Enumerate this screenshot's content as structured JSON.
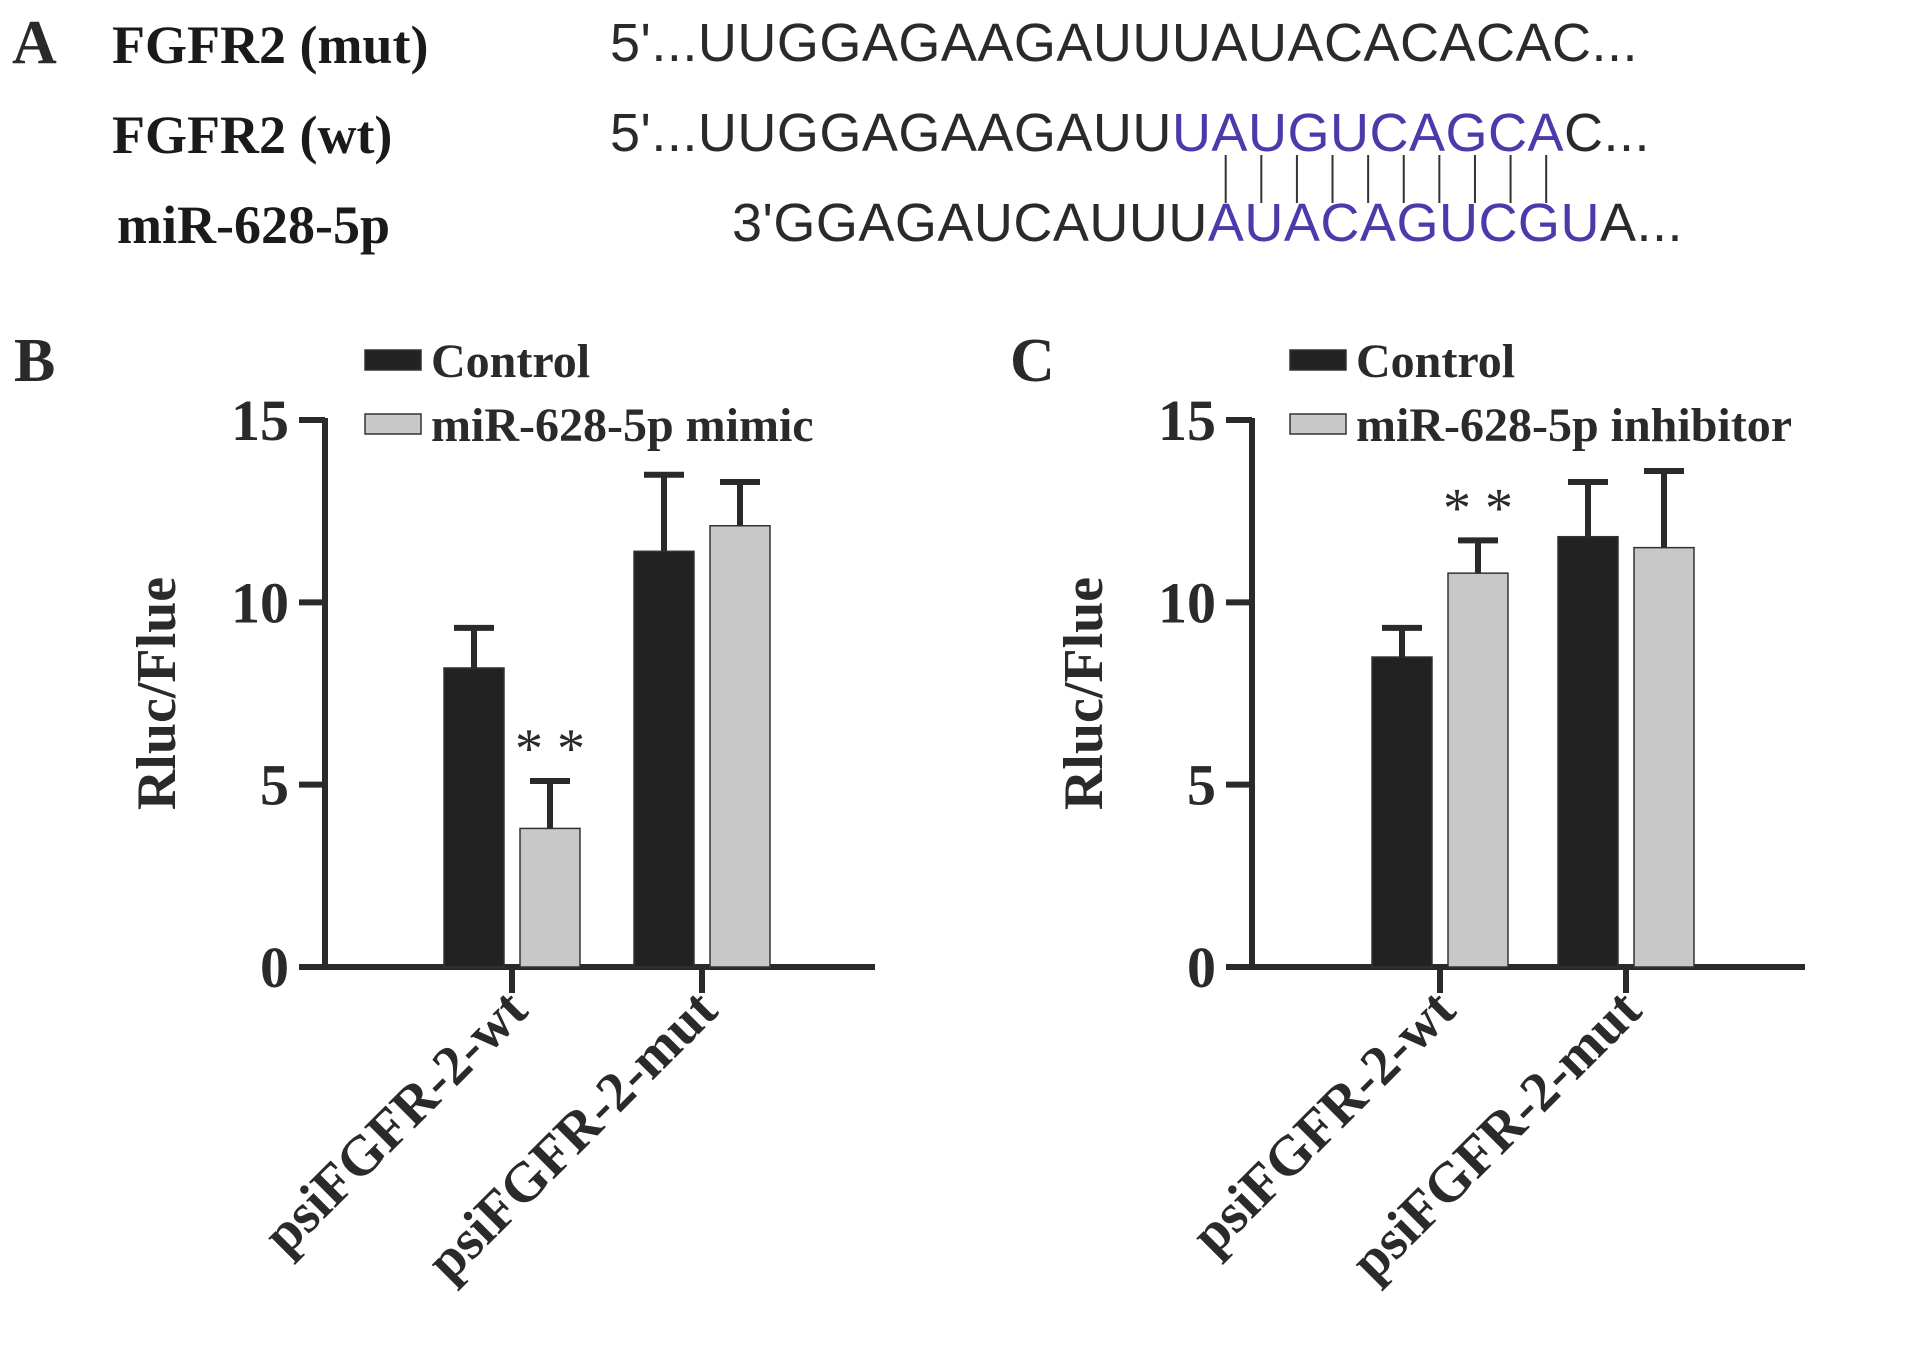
{
  "panel_a": {
    "letter": "A",
    "rows": [
      {
        "name": "FGFR2 (mut)",
        "prefix": "5'...",
        "plain": "UUGGAGAAGAUUUAUACACACAC",
        "highlight": "",
        "after": "",
        "suffix": "..."
      },
      {
        "name": "FGFR2 (wt)",
        "prefix": "5'...",
        "plain": "UUGGAGAAGAUU",
        "highlight": "UAUGUCAGCA",
        "after": "C",
        "suffix": "..."
      },
      {
        "name": "miR-628-5p",
        "prefix": "3'",
        "plain": "GGAGAUCAUUU",
        "highlight": "AUACAGUCGU",
        "after": "A",
        "suffix": "..."
      }
    ],
    "highlight_color": "#4a3aaa",
    "pairing_lines": 10
  },
  "chart_data": [
    {
      "panel": "B",
      "type": "bar",
      "ylabel": "Rluc/Flue",
      "ylim": [
        0,
        15
      ],
      "yticks": [
        0,
        5,
        10,
        15
      ],
      "categories": [
        "psiFGFR-2-wt",
        "psiFGFR-2-mut"
      ],
      "series": [
        {
          "name": "Control",
          "color": "#222222",
          "values": [
            8.2,
            11.4
          ],
          "errors": [
            1.1,
            2.1
          ]
        },
        {
          "name": "miR-628-5p mimic",
          "color": "#c8c8c8",
          "values": [
            3.8,
            12.1
          ],
          "errors": [
            1.3,
            1.2
          ]
        }
      ],
      "annotations": [
        {
          "text": "**",
          "category": 0,
          "series": 1
        }
      ],
      "legend": "top-center"
    },
    {
      "panel": "C",
      "type": "bar",
      "ylabel": "Rluc/Flue",
      "ylim": [
        0,
        15
      ],
      "yticks": [
        0,
        5,
        10,
        15
      ],
      "categories": [
        "psiFGFR-2-wt",
        "psiFGFR-2-mut"
      ],
      "series": [
        {
          "name": "Control",
          "color": "#222222",
          "values": [
            8.5,
            11.8
          ],
          "errors": [
            0.8,
            1.5
          ]
        },
        {
          "name": "miR-628-5p inhibitor",
          "color": "#c8c8c8",
          "values": [
            10.8,
            11.5
          ],
          "errors": [
            0.9,
            2.1
          ]
        }
      ],
      "annotations": [
        {
          "text": "**",
          "category": 0,
          "series": 1
        }
      ],
      "legend": "top-center"
    }
  ]
}
